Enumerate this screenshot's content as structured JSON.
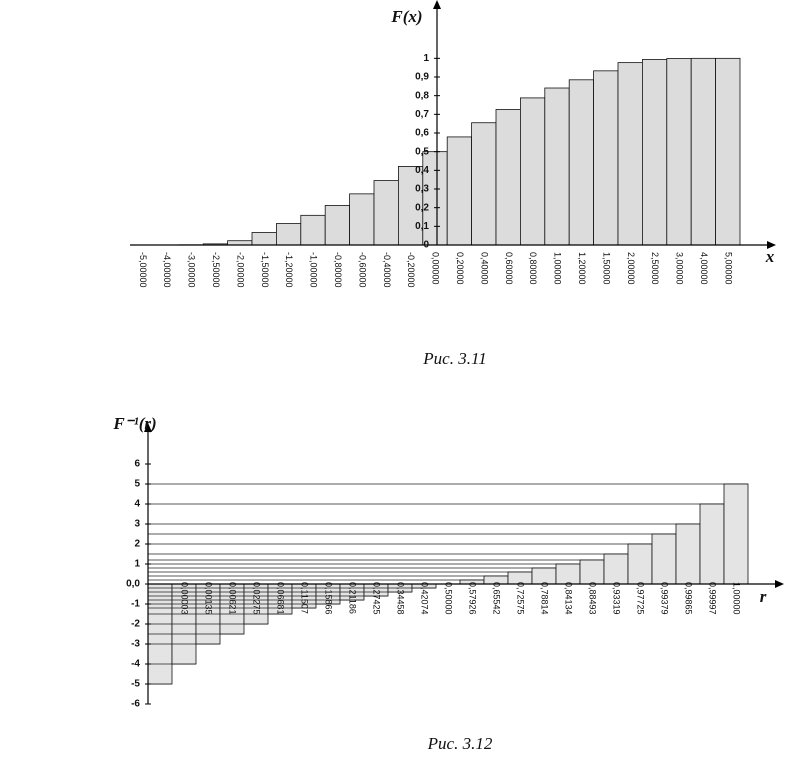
{
  "chart_data": [
    {
      "type": "bar",
      "ylabel": "F(x)",
      "xlabel": "x",
      "caption": "Рис. 3.11",
      "color": "#dcdcdc",
      "edge": "#111",
      "grid": false,
      "categories": [
        "-5,00000",
        "-4,00000",
        "-3,00000",
        "-2,50000",
        "-2,00000",
        "-1,50000",
        "-1,20000",
        "-1,00000",
        "-0,80000",
        "-0,60000",
        "-0,40000",
        "-0,20000",
        "0,00000",
        "0,20000",
        "0,40000",
        "0,60000",
        "0,80000",
        "1,00000",
        "1,20000",
        "1,50000",
        "2,00000",
        "2,50000",
        "3,00000",
        "4,00000",
        "5,00000"
      ],
      "values": [
        0,
        0,
        0.001,
        0.006,
        0.023,
        0.067,
        0.115,
        0.159,
        0.212,
        0.274,
        0.345,
        0.421,
        0.5,
        0.579,
        0.655,
        0.726,
        0.788,
        0.841,
        0.885,
        0.933,
        0.977,
        0.994,
        0.999,
        1,
        1
      ],
      "ylim": [
        0,
        1.2
      ],
      "yticks": [
        0,
        {
          "value": 0.1,
          "label": "0,1"
        },
        {
          "value": 0.2,
          "label": "0,2"
        },
        {
          "value": 0.3,
          "label": "0,3"
        },
        {
          "value": 0.4,
          "label": "0,4"
        },
        {
          "value": 0.5,
          "label": "0,5"
        },
        {
          "value": 0.6,
          "label": "0,6"
        },
        {
          "value": 0.7,
          "label": "0,7"
        },
        {
          "value": 0.8,
          "label": "0,8"
        },
        {
          "value": 0.9,
          "label": "0,9"
        },
        1
      ]
    },
    {
      "type": "bar",
      "ylabel": "F⁻¹(r)",
      "xlabel": "r",
      "caption": "Рис. 3.12",
      "color": "#e4e4e4",
      "edge": "#111",
      "grid": true,
      "categories": [
        null,
        "0,00003",
        "0,00135",
        "0,00621",
        "0,02275",
        "0,06681",
        "0,11507",
        "0,15866",
        "0,21186",
        "0,27425",
        "0,34458",
        "0,42074",
        "0,50000",
        "0,57926",
        "0,65542",
        "0,72575",
        "0,78814",
        "0,84134",
        "0,88493",
        "0,93319",
        "0,97725",
        "0,99379",
        "0,99865",
        "0,99997",
        "1,00000"
      ],
      "values": [
        -5,
        -4,
        -3,
        -2.5,
        -2,
        -1.5,
        -1.2,
        -1,
        -0.8,
        -0.6,
        -0.4,
        -0.2,
        0,
        0.2,
        0.4,
        0.6,
        0.8,
        1,
        1.2,
        1.5,
        2,
        2.5,
        3,
        4,
        5
      ],
      "ylim": [
        -6,
        7
      ],
      "yticks": [
        -6,
        -5,
        -4,
        -3,
        -2,
        -1,
        {
          "value": 0,
          "label": "0,0"
        },
        1,
        2,
        3,
        4,
        5,
        6
      ]
    }
  ]
}
